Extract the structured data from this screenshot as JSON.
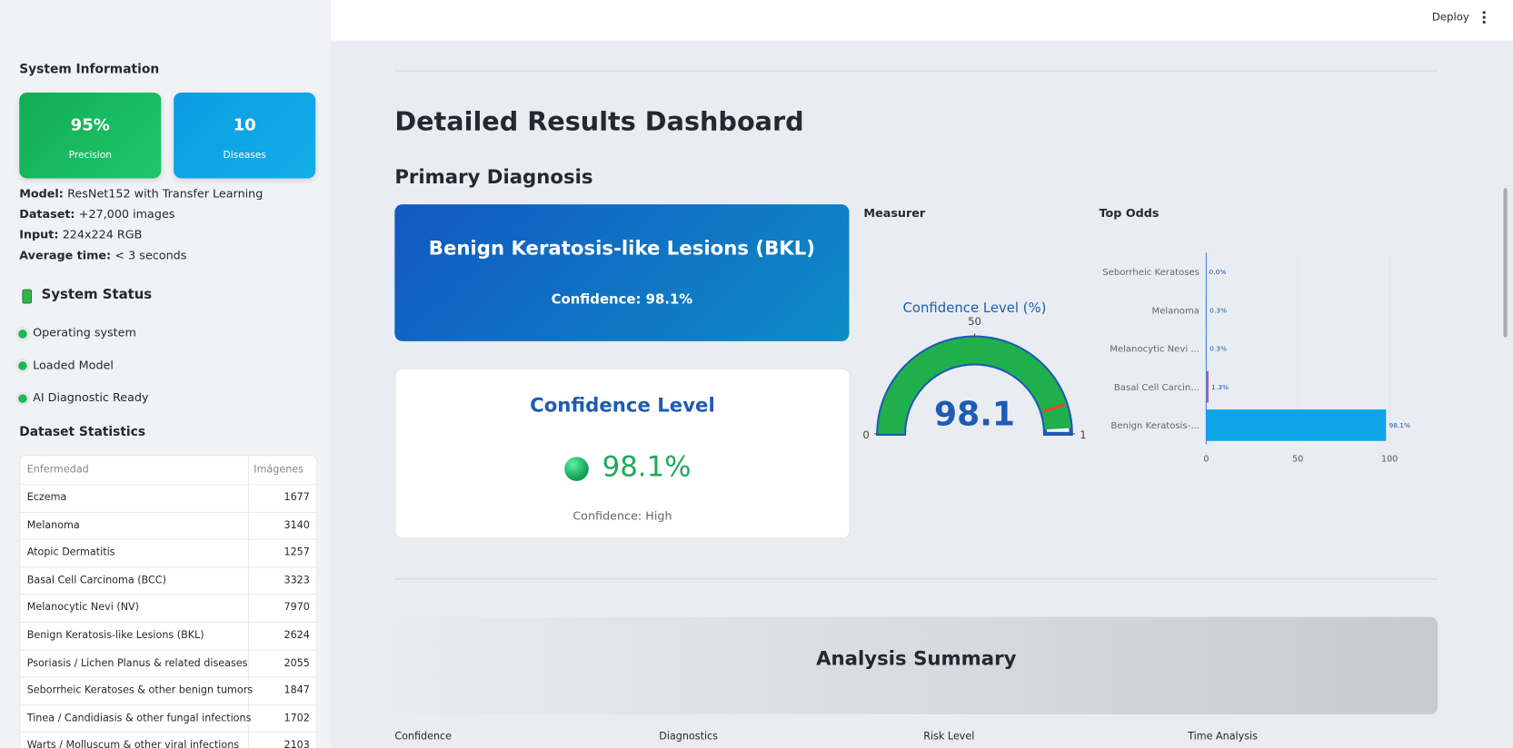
{
  "header": {
    "deploy": "Deploy"
  },
  "sidebar": {
    "system_info": {
      "title": "System Information",
      "cards": [
        {
          "value": "95%",
          "label": "Precision"
        },
        {
          "value": "10",
          "label": "Diseases"
        }
      ],
      "details": [
        {
          "key": "Model:",
          "value": "ResNet152 with Transfer Learning"
        },
        {
          "key": "Dataset:",
          "value": "+27,000 images"
        },
        {
          "key": "Input:",
          "value": "224x224 RGB"
        },
        {
          "key": "Average time:",
          "value": "< 3 seconds"
        }
      ]
    },
    "system_status": {
      "title": "System Status",
      "items": [
        "Operating system",
        "Loaded Model",
        "AI Diagnostic Ready"
      ]
    },
    "dataset": {
      "title": "Dataset Statistics",
      "columns": [
        "Enfermedad",
        "Imágenes"
      ],
      "rows": [
        [
          "Eczema",
          1677
        ],
        [
          "Melanoma",
          3140
        ],
        [
          "Atopic Dermatitis",
          1257
        ],
        [
          "Basal Cell Carcinoma (BCC)",
          3323
        ],
        [
          "Melanocytic Nevi (NV)",
          7970
        ],
        [
          "Benign Keratosis-like Lesions (BKL)",
          2624
        ],
        [
          "Psoriasis / Lichen Planus & related diseases",
          2055
        ],
        [
          "Seborrheic Keratoses & other benign tumors",
          1847
        ],
        [
          "Tinea / Candidiasis & other fungal infections",
          1702
        ],
        [
          "Warts / Molluscum & other viral infections",
          2103
        ]
      ]
    }
  },
  "main": {
    "title": "Detailed Results Dashboard",
    "section": "Primary Diagnosis",
    "diagnosis": {
      "name": "Benign Keratosis-like Lesions (BKL)",
      "confidence": "Confidence: 98.1%"
    },
    "confidence_card": {
      "title": "Confidence Level",
      "value": "98.1%",
      "note": "Confidence: High"
    },
    "gauge_label": "Measurer",
    "odds_label": "Top Odds",
    "summary": {
      "title": "Analysis Summary",
      "columns": [
        "Confidence",
        "Diagnostics",
        "Risk Level",
        "Time Analysis"
      ]
    }
  },
  "chart_data": [
    {
      "type": "gauge",
      "title": "Confidence Level (%)",
      "value": 98.1,
      "xlim": [
        0,
        100
      ],
      "xticks": [
        0,
        50,
        100
      ],
      "threshold": 90,
      "color": "#1fb04c",
      "outline_color": "#1e5bb5",
      "threshold_color": "#e8472c"
    },
    {
      "type": "hbar",
      "categories": [
        "Seborrheic Keratoses",
        "Melanoma",
        "Melanocytic Nevi ...",
        "Basal Cell Carcin...",
        "Benign Keratosis-..."
      ],
      "values": [
        0.0,
        0.3,
        0.3,
        1.3,
        98.1
      ],
      "value_labels": [
        "0.0%",
        "0.3%",
        "0.3%",
        "1.3%",
        "98.1%"
      ],
      "colors": [
        "#3b82f6",
        "#3b82f6",
        "#3b82f6",
        "#c0587a",
        "#0ea5e9"
      ],
      "xlim": [
        0,
        100
      ],
      "xticks": [
        0,
        50,
        100
      ],
      "grid": true
    }
  ]
}
